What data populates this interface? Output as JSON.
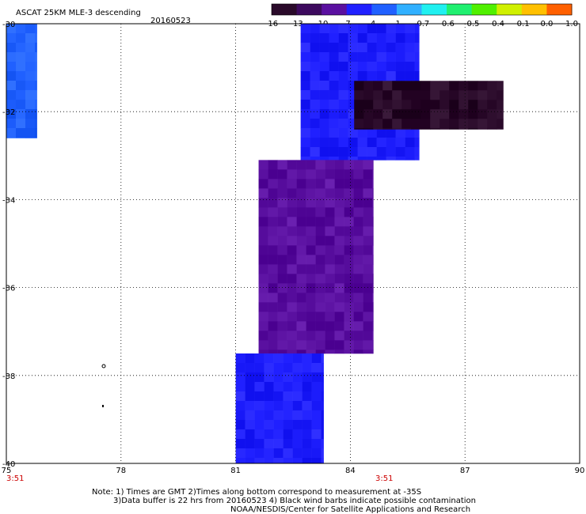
{
  "title": "ASCAT 25KM MLE-3 descending",
  "date": "20160523",
  "colorbar": {
    "labels": [
      "-16",
      "-13",
      "-10",
      "-7",
      "-4",
      "-1",
      "-0.7",
      "-0.6",
      "-0.5",
      "-0.4",
      "-0.1",
      "0.0",
      "1.0"
    ],
    "colors": [
      "#2a0a2a",
      "#3d0a5e",
      "#5a10a0",
      "#2020ff",
      "#2060ff",
      "#30b0ff",
      "#20f0f0",
      "#20f070",
      "#50f000",
      "#d0f000",
      "#ffc000",
      "#ff6000",
      "#ff0000"
    ]
  },
  "axes": {
    "lon_ticks": [
      "75",
      "78",
      "81",
      "84",
      "87",
      "90"
    ],
    "lat_ticks": [
      "-30",
      "-32",
      "-34",
      "-36",
      "-38",
      "-40"
    ],
    "lon_range": [
      75,
      90
    ],
    "lat_range": [
      -40,
      -30
    ]
  },
  "times": [
    "3:51",
    "3:51"
  ],
  "notes": [
    "Note: 1) Times are GMT 2)Times along bottom correspond to measurement at -35S",
    "3)Data buffer is 22 hrs from 20160523 4) Black wind barbs indicate possible contamination",
    "NOAA/NESDIS/Center for Satellite Applications and Research"
  ],
  "swaths": [
    {
      "name": "west-swath",
      "lon": [
        75.0,
        75.8
      ],
      "lat": [
        -32.6,
        -30.0
      ],
      "value": -4
    },
    {
      "name": "main-swath-north",
      "lon": [
        82.7,
        85.8
      ],
      "lat": [
        -33.1,
        -30.0
      ],
      "value": -7
    },
    {
      "name": "dark-band",
      "lon": [
        84.1,
        88.0
      ],
      "lat": [
        -32.4,
        -31.3
      ],
      "value": -16
    },
    {
      "name": "main-swath-mid",
      "lon": [
        81.6,
        84.6
      ],
      "lat": [
        -37.5,
        -33.1
      ],
      "value": -8
    },
    {
      "name": "main-swath-south",
      "lon": [
        81.0,
        83.3
      ],
      "lat": [
        -40.0,
        -37.5
      ],
      "value": -5
    }
  ]
}
